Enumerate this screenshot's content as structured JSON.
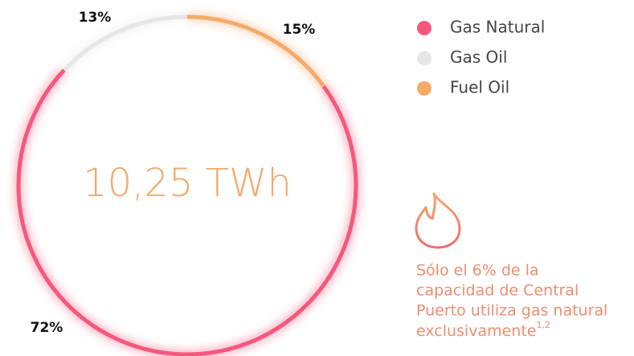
{
  "chart_data": {
    "type": "donut",
    "center_label": "10,25 TWh",
    "categories": [
      "Gas Natural",
      "Gas Oil",
      "Fuel Oil"
    ],
    "values": [
      72,
      13,
      15
    ],
    "value_labels": [
      "72%",
      "13%",
      "15%"
    ],
    "colors": [
      "#f6587b",
      "#e6e6e6",
      "#f6aa6a"
    ],
    "legend": "top-right"
  },
  "note": {
    "lines": [
      "Sólo el 6% de la",
      "capacidad de Central",
      "Puerto utiliza gas natural",
      "exclusivamente"
    ],
    "superscript": "1,2"
  }
}
